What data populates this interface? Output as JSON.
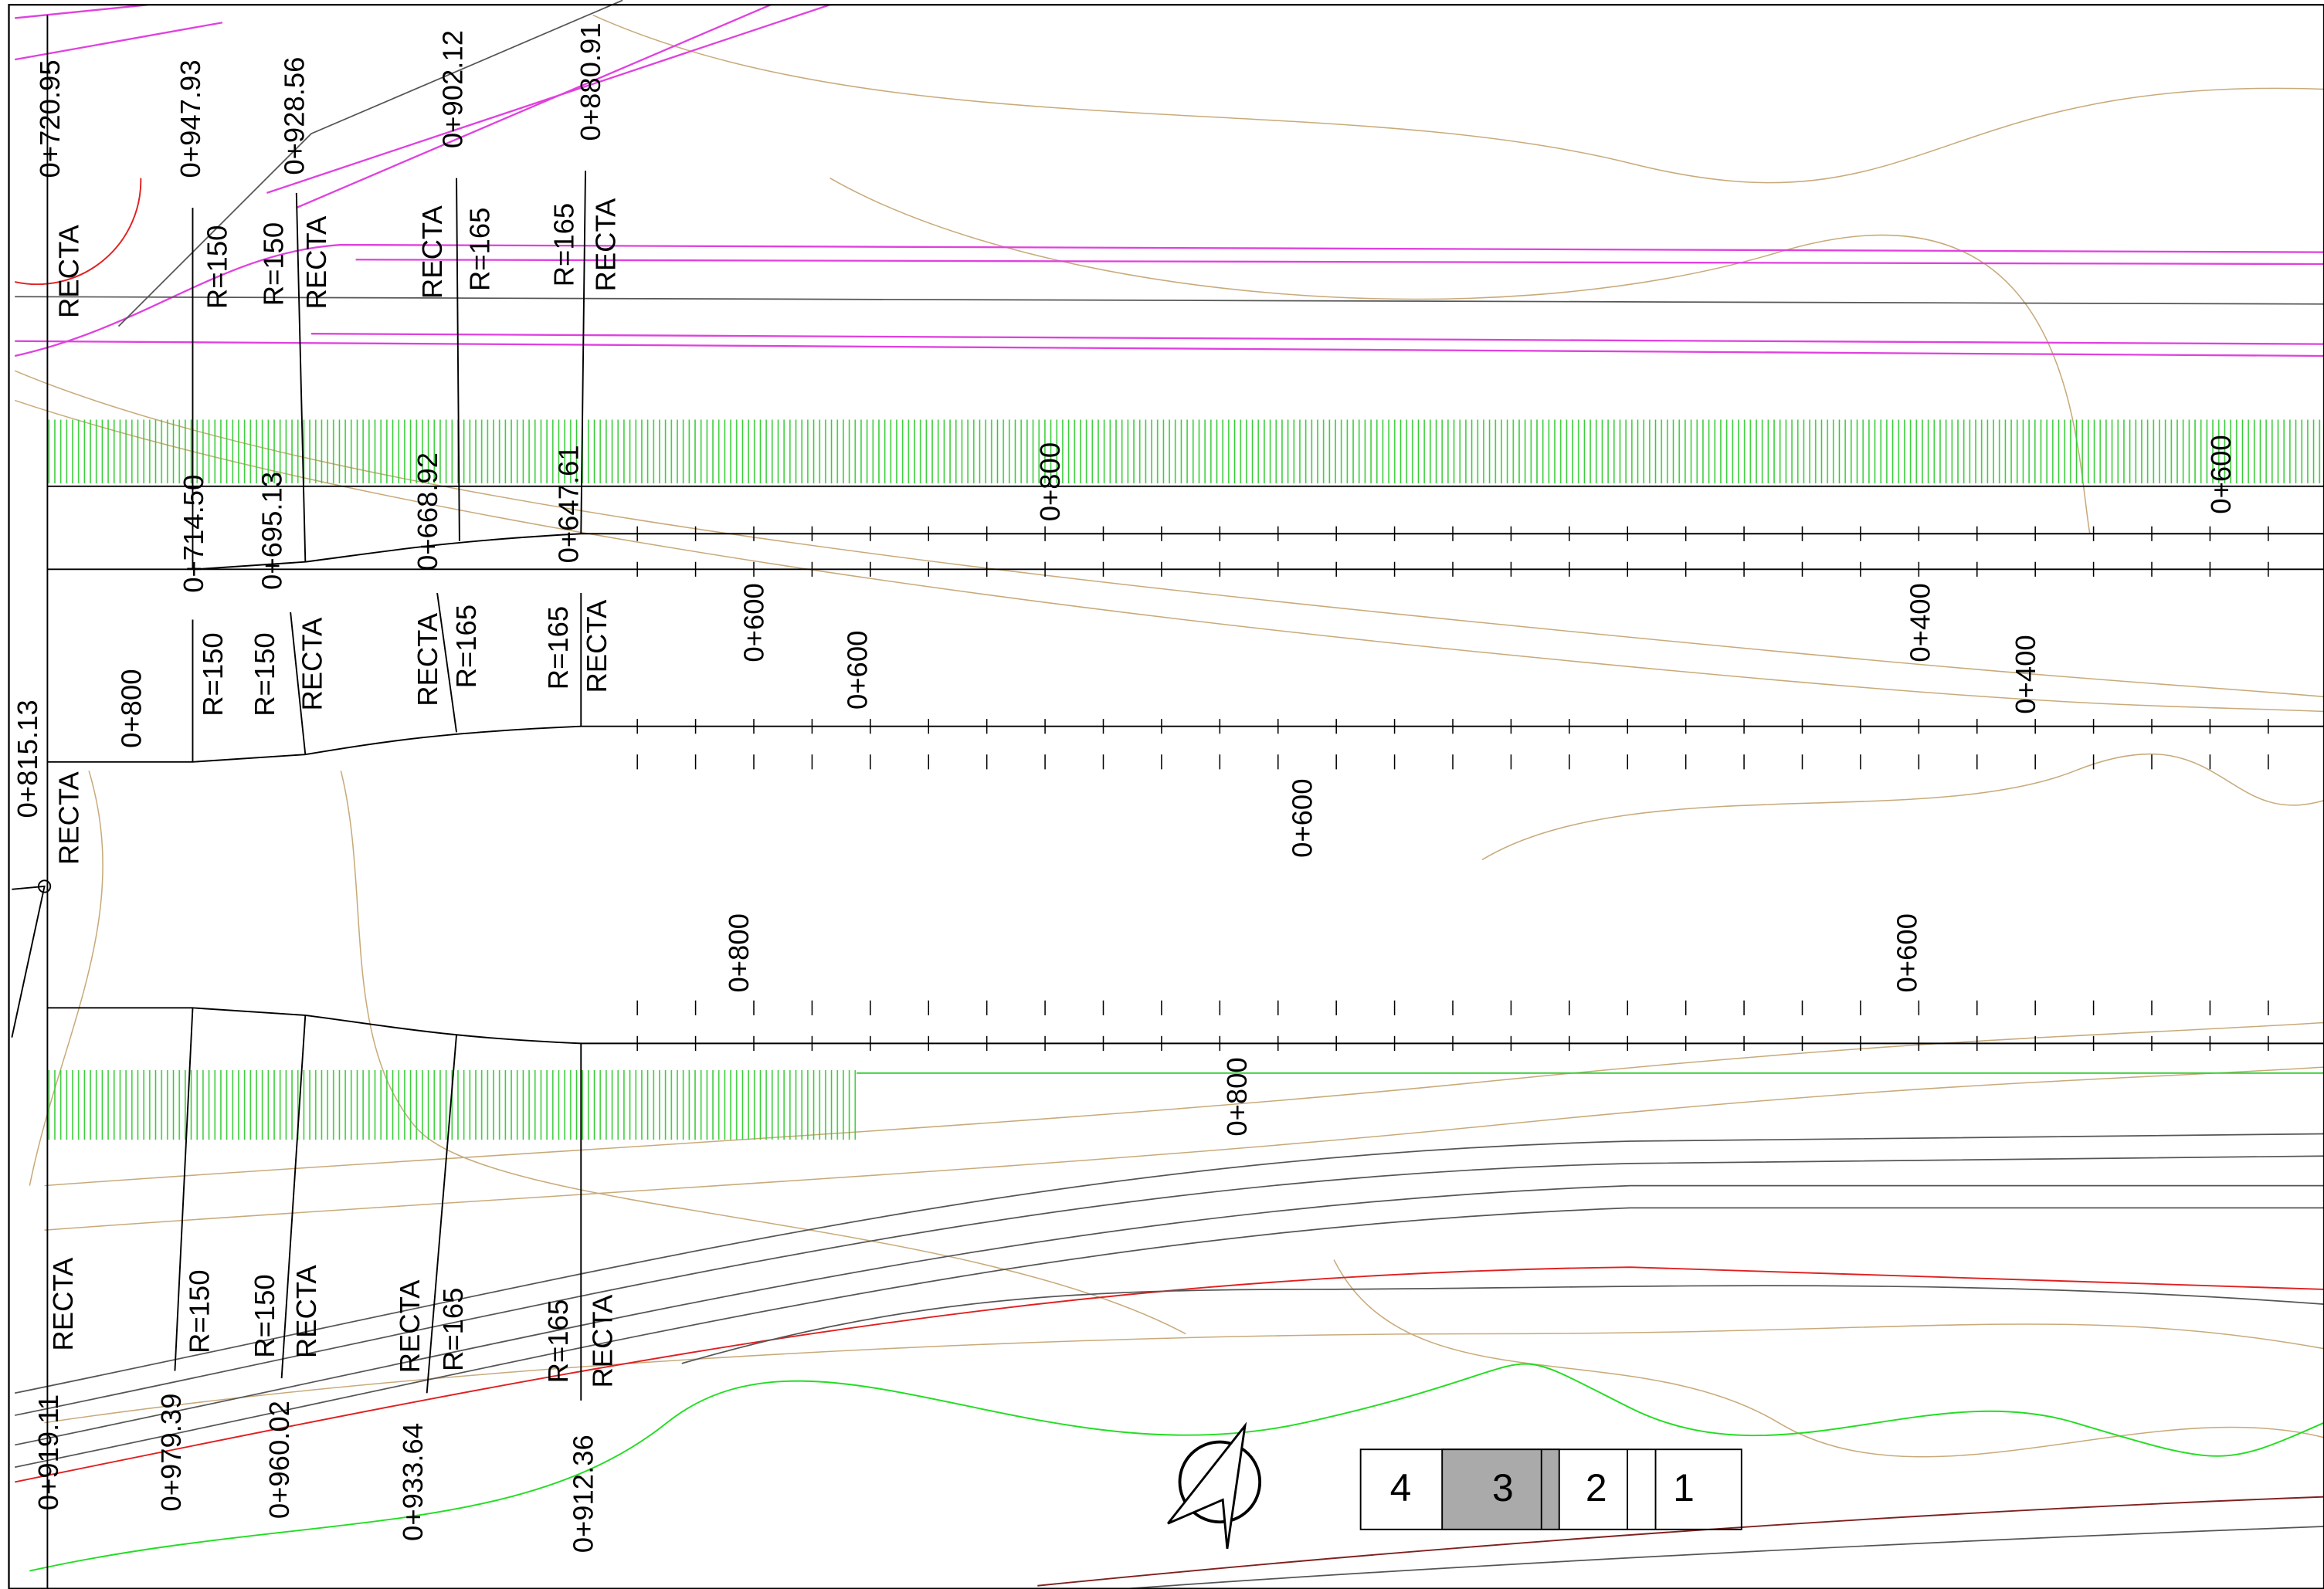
{
  "labels": [
    "0+720.95",
    "RECTA",
    "0+947.93",
    "R=150",
    "0+928.56",
    "R=150",
    "RECTA",
    "0+902.12",
    "RECTA",
    "R=165",
    "0+880.91",
    "R=165",
    "RECTA",
    "0+800",
    "0+600",
    "0+714.50",
    "0+695.13",
    "0+668.92",
    "0+647.61",
    "0+600",
    "0+400",
    "R=150",
    "R=150",
    "RECTA",
    "RECTA",
    "R=165",
    "R=165",
    "RECTA",
    "0+600",
    "0+400",
    "0+800",
    "0+815.13",
    "RECTA",
    "0+600",
    "0+800",
    "0+600",
    "0+800",
    "RECTA",
    "0+919.11",
    "R=150",
    "0+979.39",
    "R=150",
    "RECTA",
    "0+960.02",
    "RECTA",
    "R=165",
    "0+933.64",
    "R=165",
    "RECTA",
    "0+912.36"
  ],
  "sheet_index": [
    "4",
    "3",
    "2",
    "1"
  ]
}
